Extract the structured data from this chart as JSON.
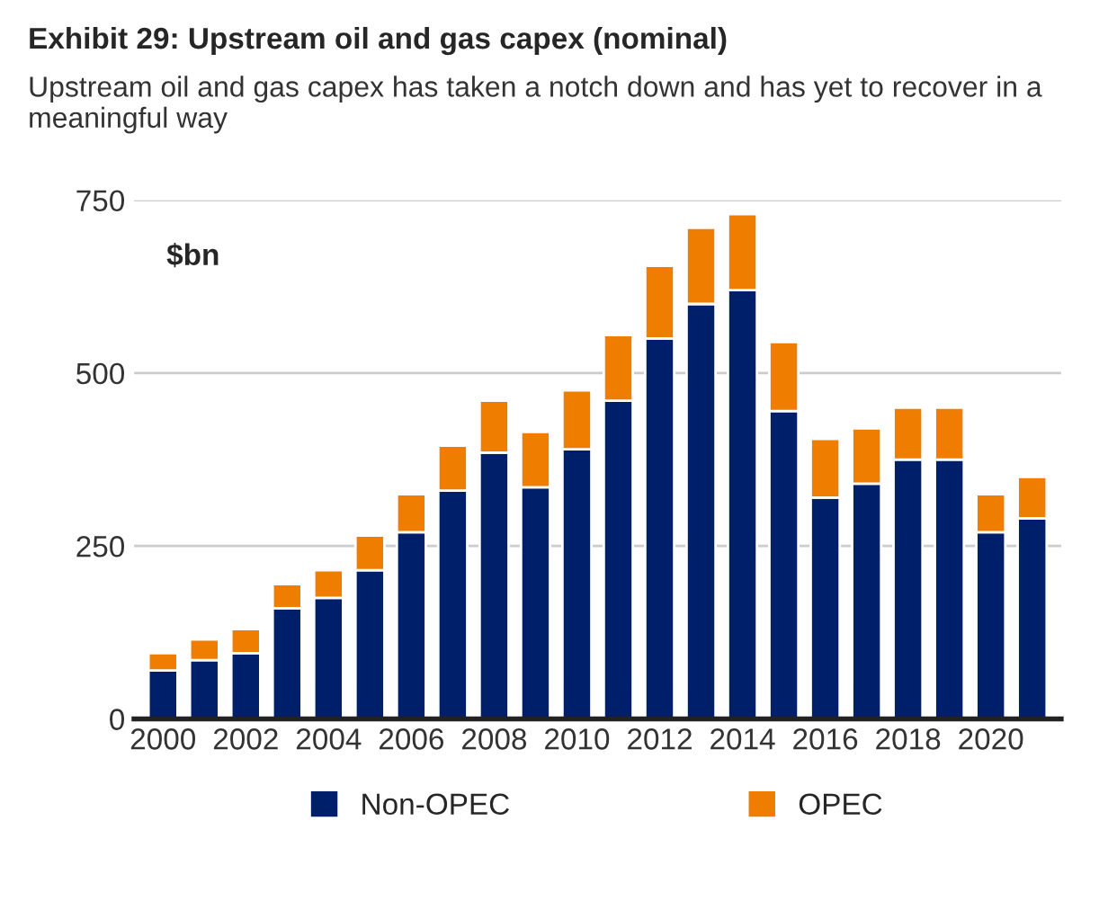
{
  "chart_data": {
    "type": "bar",
    "stacked": true,
    "title": "Exhibit 29: Upstream oil and gas capex (nominal)",
    "subtitle": "Upstream oil and gas capex has taken a notch down and has yet to recover in a meaningful way",
    "categories": [
      "2000",
      null,
      "2002",
      null,
      "2004",
      null,
      "2006",
      null,
      "2008",
      null,
      "2010",
      null,
      "2012",
      null,
      "2014",
      null,
      "2016",
      null,
      "2018",
      null,
      "2020",
      null
    ],
    "series": [
      {
        "name": "Non-OPEC",
        "color": "#001f6b",
        "values": [
          70,
          85,
          95,
          160,
          175,
          215,
          270,
          330,
          385,
          335,
          390,
          460,
          550,
          600,
          620,
          445,
          320,
          340,
          375,
          375,
          270,
          290
        ]
      },
      {
        "name": "OPEC",
        "color": "#ee7d00",
        "values": [
          25,
          30,
          35,
          35,
          40,
          50,
          55,
          65,
          75,
          80,
          85,
          95,
          105,
          110,
          110,
          100,
          85,
          80,
          75,
          75,
          55,
          60
        ]
      }
    ],
    "ylim": [
      0,
      750
    ],
    "yticks": [
      0,
      250,
      500,
      750
    ],
    "grid": "y",
    "legend": "bottom",
    "annotations": [
      "$bn"
    ]
  }
}
